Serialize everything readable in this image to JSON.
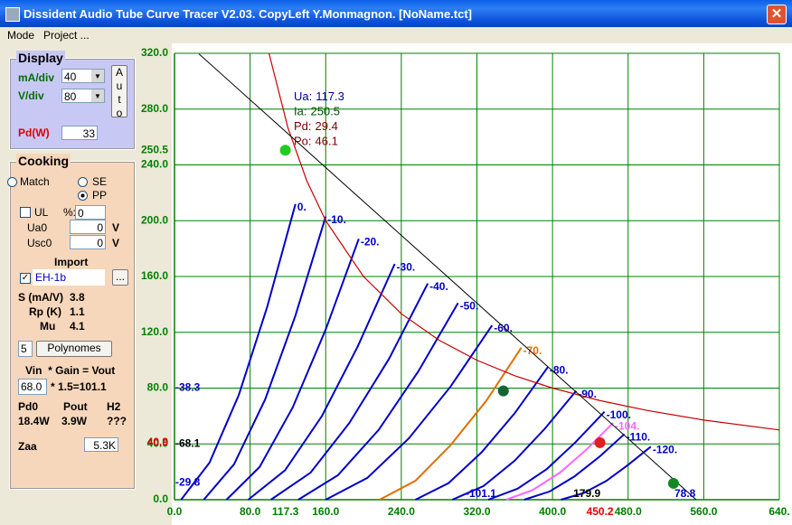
{
  "window": {
    "title": "Dissident Audio Tube Curve Tracer V2.03. CopyLeft Y.Monmagnon. [NoName.tct]",
    "menu": [
      "Mode",
      "Project ..."
    ]
  },
  "display": {
    "legend": "Display",
    "ma_div_label": "mA/div",
    "ma_div": "40",
    "v_div_label": "V/div",
    "v_div": "80",
    "auto": "Auto",
    "pd_label": "Pd(W)",
    "pd": "33"
  },
  "cooking": {
    "legend": "Cooking",
    "match": "Match",
    "se": "SE",
    "pp": "PP",
    "ul": "UL",
    "ul_pct_label": "%:",
    "ul_pct": "0",
    "ua0_label": "Ua0",
    "ua0": "0",
    "ua0_unit": "V",
    "usc0_label": "Usc0",
    "usc0": "0",
    "usc0_unit": "V",
    "import_label": "Import",
    "tube": "EH-1b",
    "browse": "...",
    "s_label": "S (mA/V)",
    "s": "3.8",
    "rp_label": "Rp (K)",
    "rp": "1.1",
    "mu_label": "Mu",
    "mu": "4.1",
    "poly_order": "5",
    "poly_button": "Polynomes",
    "gain_header": "Vin  * Gain = Vout",
    "vin": "68.0",
    "gain": "* 1.5=101.1",
    "pd0_label": "Pd0",
    "pout_label": "Pout",
    "h2_label": "H2",
    "pd0": "18.4W",
    "pout": "3.9W",
    "h2": "???",
    "zaa_label": "Zaa",
    "zaa": "5.3K"
  },
  "chart_data": {
    "type": "line",
    "xlim": [
      0,
      640
    ],
    "ylim": [
      0,
      320
    ],
    "xticks": [
      {
        "value": 0,
        "label": "0.0"
      },
      {
        "value": 80,
        "label": "80.0"
      },
      {
        "value": 160,
        "label": "160.0"
      },
      {
        "value": 240,
        "label": "240.0"
      },
      {
        "value": 320,
        "label": "320.0"
      },
      {
        "value": 400,
        "label": "400.0"
      },
      {
        "value": 480,
        "label": "480.0"
      },
      {
        "value": 560,
        "label": "560.0"
      },
      {
        "value": 640,
        "label": "640."
      }
    ],
    "yticks": [
      {
        "value": 0,
        "label": "0.0"
      },
      {
        "value": 40,
        "label": "40.0"
      },
      {
        "value": 80,
        "label": "80.0"
      },
      {
        "value": 120,
        "label": "120.0"
      },
      {
        "value": 160,
        "label": "160.0"
      },
      {
        "value": 200,
        "label": "200.0"
      },
      {
        "value": 240,
        "label": "240.0"
      },
      {
        "value": 280,
        "label": "280.0"
      },
      {
        "value": 320,
        "label": "320.0"
      }
    ],
    "grid": true,
    "grid_color": "#008000",
    "series": [
      {
        "name": "0.",
        "color": "#0000c8",
        "x": [
          7,
          37,
          68,
          98,
          128
        ],
        "values": [
          0,
          26.5,
          75,
          138,
          212
        ]
      },
      {
        "name": "-10.",
        "color": "#0000c8",
        "x": [
          31,
          63,
          96,
          128,
          160
        ],
        "values": [
          0,
          25.4,
          72,
          132,
          203
        ]
      },
      {
        "name": "-20.",
        "color": "#0000c8",
        "x": [
          55,
          90,
          125,
          160,
          195
        ],
        "values": [
          0,
          23.4,
          66,
          122,
          187
        ]
      },
      {
        "name": "-30.",
        "color": "#0000c8",
        "x": [
          78,
          117,
          156,
          194,
          233
        ],
        "values": [
          0,
          21.1,
          60,
          110,
          169
        ]
      },
      {
        "name": "-40.",
        "color": "#0000c8",
        "x": [
          102,
          144,
          185,
          227,
          268
        ],
        "values": [
          0,
          19.4,
          55,
          101,
          155
        ]
      },
      {
        "name": "-50.",
        "color": "#0000c8",
        "x": [
          131,
          173,
          216,
          258,
          300
        ],
        "values": [
          0,
          17.6,
          50,
          92,
          141
        ]
      },
      {
        "name": "-60.",
        "color": "#0000c8",
        "x": [
          160,
          204,
          248,
          292,
          336
        ],
        "values": [
          0,
          15.6,
          44,
          81,
          125
        ]
      },
      {
        "name": "-70.",
        "color": "#e07000",
        "x": [
          217,
          255,
          292,
          330,
          367
        ],
        "values": [
          0,
          13.6,
          39,
          71,
          109
        ]
      },
      {
        "name": "-80.",
        "color": "#0000c8",
        "x": [
          255,
          290,
          325,
          360,
          395
        ],
        "values": [
          0,
          11.9,
          34,
          62,
          95
        ]
      },
      {
        "name": "-90.",
        "color": "#0000c8",
        "x": [
          294,
          327,
          360,
          392,
          425
        ],
        "values": [
          0,
          9.8,
          28,
          51,
          78
        ]
      },
      {
        "name": "-100.",
        "color": "#0000c8",
        "x": [
          332,
          363,
          394,
          424,
          455
        ],
        "values": [
          0,
          7.9,
          22,
          41,
          63
        ]
      },
      {
        "name": "-104.",
        "color": "#ff66ff",
        "x": [
          351,
          379,
          408,
          436,
          464
        ],
        "values": [
          0,
          6.9,
          19.5,
          36,
          55
        ]
      },
      {
        "name": "-110.",
        "color": "#0000c8",
        "x": [
          370,
          397,
          423,
          450,
          476
        ],
        "values": [
          0,
          5.9,
          16.6,
          31,
          47
        ]
      },
      {
        "name": "-120.",
        "color": "#0000c8",
        "x": [
          409,
          433,
          457,
          480,
          504
        ],
        "values": [
          0,
          4.8,
          13.5,
          25,
          38
        ]
      }
    ],
    "pd_curve": {
      "color": "#c80000",
      "x": [
        100,
        120,
        140,
        160,
        200,
        240,
        280,
        320,
        360,
        400,
        450,
        500,
        560,
        640
      ],
      "values": [
        320,
        266.7,
        228.6,
        200,
        160,
        133.3,
        114.3,
        100,
        88.9,
        80,
        71.1,
        64,
        57.1,
        50
      ]
    },
    "load_line": {
      "color": "#000000",
      "x": [
        26,
        552
      ],
      "values": [
        319.5,
        0
      ]
    },
    "points": [
      {
        "x": 117.3,
        "y": 250.5,
        "color": "#22cc22"
      },
      {
        "x": 348,
        "y": 78,
        "color": "#116633"
      },
      {
        "x": 450.2,
        "y": 40.9,
        "color": "#e02020"
      },
      {
        "x": 528,
        "y": 11.7,
        "color": "#118822"
      }
    ],
    "x_markers": [
      {
        "value": 117.3,
        "color": "#008000"
      },
      {
        "value": 450.2,
        "color": "#e00000"
      }
    ],
    "y_markers": [
      {
        "value": 250.5,
        "color": "#008000"
      },
      {
        "value": 40.9,
        "color": "#e00000"
      }
    ],
    "grid_notes": [
      {
        "value": -38.3,
        "y": 80,
        "color": "#0000c8"
      },
      {
        "value": -68.1,
        "y": 40,
        "color": "#000000"
      },
      {
        "value": -29.8,
        "y": 12,
        "color": "#0000c8"
      }
    ],
    "bottom_notes": [
      {
        "value": -101.1,
        "x": 308,
        "color": "#0000c8"
      },
      {
        "value": 179.9,
        "x": 422,
        "color": "#000000"
      },
      {
        "value": 78.8,
        "x": 529,
        "color": "#0000c8"
      }
    ],
    "readout": [
      {
        "label": "Ua:",
        "value": 117.3,
        "color": "#000096"
      },
      {
        "label": "Ia:",
        "value": 250.5,
        "color": "#005000"
      },
      {
        "label": "Pd:",
        "value": 29.4,
        "color": "#7a0000"
      },
      {
        "label": "Po:",
        "value": 46.1,
        "color": "#7a0000"
      }
    ]
  }
}
